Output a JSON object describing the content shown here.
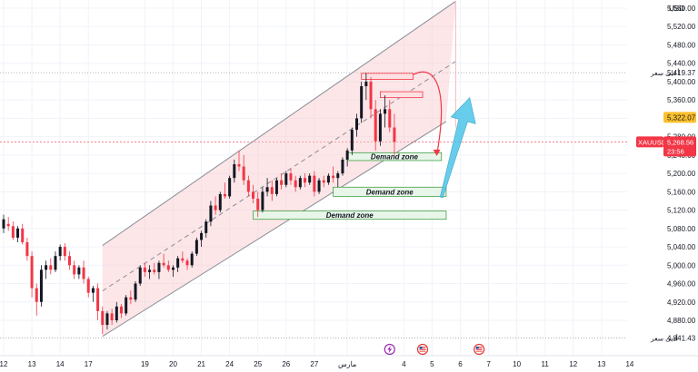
{
  "chart_data": {
    "type": "candlestick",
    "symbol": "XAUUSD",
    "currency": "USD",
    "y_ticks": [
      4880,
      4920,
      4960,
      5000,
      5040,
      5080,
      5120,
      5160,
      5200,
      5240,
      5280,
      5320,
      5360,
      5400,
      5440,
      5480,
      5520,
      5560
    ],
    "y_ticks_text": [
      "4,880.00",
      "4,920.00",
      "4,960.00",
      "5,000.00",
      "5,040.00",
      "5,080.00",
      "5,120.00",
      "5,160.00",
      "5,200.00",
      "5,240.00",
      "5,280.00",
      "5,320.00",
      "5,360.00",
      "5,400.00",
      "5,440.00",
      "5,480.00",
      "5,520.00",
      "5,560.00"
    ],
    "x_ticks": [
      {
        "label": "12",
        "i": 0
      },
      {
        "label": "13",
        "i": 6
      },
      {
        "label": "14",
        "i": 12
      },
      {
        "label": "17",
        "i": 18
      },
      {
        "label": "19",
        "i": 30
      },
      {
        "label": "20",
        "i": 36
      },
      {
        "label": "21",
        "i": 42
      },
      {
        "label": "24",
        "i": 48
      },
      {
        "label": "25",
        "i": 54
      },
      {
        "label": "26",
        "i": 60
      },
      {
        "label": "27",
        "i": 66
      },
      {
        "label": "مارس",
        "i": 73
      },
      {
        "label": "4",
        "i": 85
      },
      {
        "label": "5",
        "i": 91
      },
      {
        "label": "6",
        "i": 97
      },
      {
        "label": "7",
        "i": 103
      },
      {
        "label": "10",
        "i": 109
      },
      {
        "label": "11",
        "i": 115
      },
      {
        "label": "12",
        "i": 121
      },
      {
        "label": "13",
        "i": 127
      },
      {
        "label": "14",
        "i": 133
      }
    ],
    "price_labels": {
      "high": {
        "text": "أعلى سعر",
        "value": 5419.37,
        "value_text": "5,419.37"
      },
      "low": {
        "text": "أدنى سعر",
        "value": 4841.43,
        "value_text": "4,841.43"
      },
      "mark": {
        "value": 5322.07,
        "value_text": "5,322.07"
      },
      "last": {
        "value": 5268.56,
        "value_text": "5,268.56",
        "countdown": "23:56"
      }
    },
    "demand_zones": [
      {
        "label": "Demand zone",
        "i0": 73,
        "i1": 93,
        "low": 5228,
        "high": 5245
      },
      {
        "label": "Demand zone",
        "i0": 70,
        "i1": 94,
        "low": 5150,
        "high": 5170
      },
      {
        "label": "Demand zone",
        "i0": 53,
        "i1": 94,
        "low": 5100,
        "high": 5118
      }
    ],
    "resistance_zones": [
      {
        "i0": 76,
        "i1": 87,
        "low": 5405,
        "high": 5418
      },
      {
        "i0": 80,
        "i1": 89,
        "low": 5365,
        "high": 5378
      }
    ],
    "channel": {
      "lower": [
        [
          21,
          4845
        ],
        [
          94,
          5313
        ]
      ],
      "upper": [
        [
          21,
          5043
        ],
        [
          96,
          5575
        ]
      ],
      "mid": [
        [
          21,
          4944
        ],
        [
          96,
          5444
        ]
      ],
      "i_end": 96
    },
    "forecast_arrow": {
      "from": [
        93,
        5148
      ],
      "to": [
        99,
        5365
      ]
    },
    "curve_arrow": {
      "from": [
        87,
        5415
      ],
      "to": [
        92,
        5240
      ]
    },
    "event_icons": [
      {
        "i": 82,
        "name": "lightning-event-icon",
        "color": "#9c27b0"
      },
      {
        "i": 89,
        "name": "us-flag-event-icon",
        "color": "#e53935"
      },
      {
        "i": 101,
        "name": "us-flag-event-icon",
        "color": "#e53935"
      }
    ],
    "candles": [
      [
        5080,
        5110,
        5070,
        5100
      ],
      [
        5090,
        5105,
        5075,
        5085
      ],
      [
        5085,
        5095,
        5055,
        5060
      ],
      [
        5060,
        5085,
        5050,
        5080
      ],
      [
        5080,
        5090,
        5045,
        5050
      ],
      [
        5050,
        5060,
        5010,
        5020
      ],
      [
        5020,
        5030,
        4930,
        4950
      ],
      [
        4950,
        4960,
        4890,
        4920
      ],
      [
        4920,
        5000,
        4910,
        4990
      ],
      [
        4990,
        5010,
        4970,
        5000
      ],
      [
        5000,
        5015,
        4980,
        4990
      ],
      [
        4990,
        5030,
        4985,
        5020
      ],
      [
        5020,
        5045,
        5010,
        5040
      ],
      [
        5040,
        5048,
        5010,
        5020
      ],
      [
        5020,
        5030,
        4990,
        5000
      ],
      [
        5000,
        5010,
        4970,
        4980
      ],
      [
        4980,
        5000,
        4970,
        4995
      ],
      [
        4995,
        5010,
        4960,
        4970
      ],
      [
        4970,
        4975,
        4930,
        4940
      ],
      [
        4940,
        4955,
        4920,
        4950
      ],
      [
        4950,
        4960,
        4880,
        4900
      ],
      [
        4900,
        4910,
        4850,
        4870
      ],
      [
        4870,
        4900,
        4860,
        4895
      ],
      [
        4895,
        4905,
        4870,
        4880
      ],
      [
        4880,
        4920,
        4875,
        4910
      ],
      [
        4910,
        4915,
        4885,
        4895
      ],
      [
        4895,
        4935,
        4890,
        4930
      ],
      [
        4930,
        4945,
        4915,
        4925
      ],
      [
        4925,
        4965,
        4920,
        4960
      ],
      [
        4960,
        5000,
        4955,
        4995
      ],
      [
        4995,
        5005,
        4975,
        4985
      ],
      [
        4985,
        5000,
        4970,
        4990
      ],
      [
        4990,
        5005,
        4980,
        4985
      ],
      [
        4985,
        5010,
        4970,
        5005
      ],
      [
        5005,
        5025,
        4995,
        5000
      ],
      [
        5000,
        5010,
        4985,
        4990
      ],
      [
        4990,
        5000,
        4975,
        4995
      ],
      [
        4995,
        5020,
        4985,
        5015
      ],
      [
        5015,
        5030,
        5005,
        5010
      ],
      [
        5010,
        5015,
        4990,
        5000
      ],
      [
        5000,
        5030,
        4995,
        5025
      ],
      [
        5025,
        5060,
        5020,
        5055
      ],
      [
        5055,
        5075,
        5040,
        5070
      ],
      [
        5070,
        5100,
        5060,
        5095
      ],
      [
        5095,
        5140,
        5085,
        5130
      ],
      [
        5130,
        5150,
        5110,
        5120
      ],
      [
        5120,
        5160,
        5115,
        5155
      ],
      [
        5155,
        5180,
        5145,
        5150
      ],
      [
        5150,
        5195,
        5145,
        5190
      ],
      [
        5190,
        5230,
        5180,
        5220
      ],
      [
        5220,
        5250,
        5205,
        5215
      ],
      [
        5215,
        5240,
        5175,
        5185
      ],
      [
        5185,
        5195,
        5150,
        5160
      ],
      [
        5160,
        5175,
        5135,
        5145
      ],
      [
        5145,
        5160,
        5105,
        5120
      ],
      [
        5120,
        5170,
        5115,
        5160
      ],
      [
        5160,
        5190,
        5150,
        5170
      ],
      [
        5170,
        5185,
        5140,
        5155
      ],
      [
        5155,
        5190,
        5150,
        5185
      ],
      [
        5185,
        5200,
        5165,
        5175
      ],
      [
        5175,
        5205,
        5170,
        5200
      ],
      [
        5200,
        5210,
        5175,
        5185
      ],
      [
        5185,
        5195,
        5160,
        5170
      ],
      [
        5170,
        5195,
        5165,
        5190
      ],
      [
        5190,
        5200,
        5170,
        5180
      ],
      [
        5180,
        5200,
        5175,
        5195
      ],
      [
        5195,
        5205,
        5150,
        5160
      ],
      [
        5160,
        5190,
        5155,
        5185
      ],
      [
        5185,
        5195,
        5170,
        5180
      ],
      [
        5180,
        5200,
        5175,
        5195
      ],
      [
        5195,
        5215,
        5180,
        5190
      ],
      [
        5190,
        5205,
        5170,
        5200
      ],
      [
        5200,
        5235,
        5195,
        5230
      ],
      [
        5230,
        5255,
        5215,
        5250
      ],
      [
        5250,
        5300,
        5240,
        5295
      ],
      [
        5295,
        5330,
        5280,
        5320
      ],
      [
        5320,
        5400,
        5310,
        5390
      ],
      [
        5390,
        5419,
        5360,
        5400
      ],
      [
        5400,
        5410,
        5320,
        5340
      ],
      [
        5340,
        5360,
        5250,
        5270
      ],
      [
        5270,
        5340,
        5260,
        5330
      ],
      [
        5330,
        5370,
        5300,
        5340
      ],
      [
        5340,
        5360,
        5290,
        5300
      ],
      [
        5300,
        5330,
        5240,
        5268.56
      ]
    ]
  }
}
